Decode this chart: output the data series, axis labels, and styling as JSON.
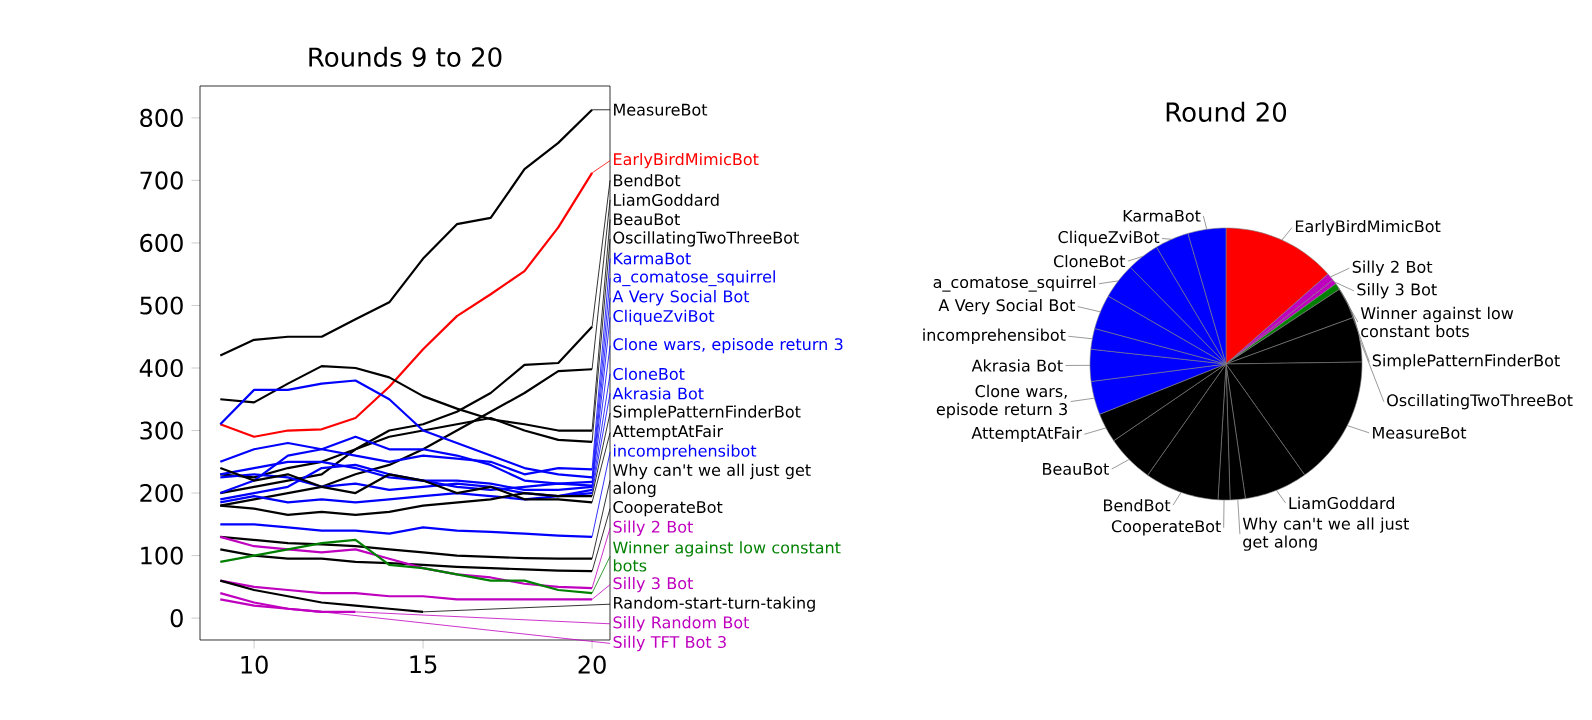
{
  "chart_data": [
    {
      "type": "line",
      "title": "Rounds 9 to 20",
      "legend": "right",
      "x": [
        9,
        10,
        11,
        12,
        13,
        14,
        15,
        16,
        17,
        18,
        19,
        20
      ],
      "xlim": [
        8.4,
        20.53
      ],
      "ylim": [
        -35,
        851
      ],
      "xticks": [
        10,
        15,
        20
      ],
      "yticks": [
        0,
        100,
        200,
        300,
        400,
        500,
        600,
        700,
        800
      ],
      "series": [
        {
          "name": "MeasureBot",
          "color": "#000000",
          "values": [
            420,
            445,
            450,
            450,
            478,
            505,
            575,
            630,
            640,
            718,
            760,
            813
          ]
        },
        {
          "name": "EarlyBirdMimicBot",
          "color": "#ff0000",
          "values": [
            310,
            290,
            300,
            302,
            320,
            370,
            430,
            483,
            518,
            555,
            625,
            712
          ]
        },
        {
          "name": "BendBot",
          "color": "#000000",
          "values": [
            230,
            225,
            240,
            250,
            270,
            300,
            310,
            330,
            360,
            405,
            408,
            466
          ]
        },
        {
          "name": "LiamGoddard",
          "color": "#000000",
          "values": [
            180,
            190,
            200,
            210,
            230,
            245,
            270,
            300,
            330,
            360,
            395,
            398
          ]
        },
        {
          "name": "BeauBot",
          "color": "#000000",
          "values": [
            350,
            345,
            375,
            403,
            400,
            385,
            355,
            335,
            318,
            310,
            300,
            300
          ]
        },
        {
          "name": "OscillatingTwoThreeBot",
          "color": "#000000",
          "values": [
            200,
            210,
            220,
            230,
            270,
            290,
            300,
            310,
            320,
            300,
            285,
            282
          ]
        },
        {
          "name": "KarmaBot",
          "color": "#0000ff",
          "values": [
            250,
            270,
            280,
            270,
            260,
            250,
            260,
            255,
            250,
            230,
            240,
            238
          ]
        },
        {
          "name": "a_comatose_squirrel",
          "color": "#0000ff",
          "values": [
            310,
            365,
            365,
            375,
            380,
            350,
            300,
            280,
            260,
            240,
            230,
            225
          ]
        },
        {
          "name": "A Very Social Bot",
          "color": "#0000ff",
          "values": [
            200,
            220,
            260,
            270,
            290,
            270,
            270,
            260,
            245,
            220,
            215,
            218
          ]
        },
        {
          "name": "CliqueZviBot",
          "color": "#0000ff",
          "values": [
            230,
            240,
            250,
            250,
            240,
            225,
            220,
            210,
            205,
            210,
            215,
            212
          ]
        },
        {
          "name": "Clone wars, episode return 3",
          "color": "#0000ff",
          "values": [
            190,
            200,
            210,
            240,
            245,
            230,
            220,
            220,
            215,
            205,
            205,
            210
          ]
        },
        {
          "name": "CloneBot",
          "color": "#0000ff",
          "values": [
            225,
            230,
            225,
            210,
            215,
            205,
            210,
            215,
            210,
            200,
            195,
            205
          ]
        },
        {
          "name": "Akrasia Bot",
          "color": "#0000ff",
          "values": [
            185,
            195,
            185,
            190,
            185,
            190,
            195,
            200,
            195,
            190,
            195,
            200
          ]
        },
        {
          "name": "SimplePatternFinderBot",
          "color": "#000000",
          "values": [
            180,
            175,
            165,
            170,
            165,
            170,
            180,
            185,
            190,
            200,
            195,
            195
          ]
        },
        {
          "name": "AttemptAtFair",
          "color": "#000000",
          "values": [
            240,
            220,
            230,
            210,
            200,
            230,
            220,
            200,
            210,
            190,
            190,
            185
          ]
        },
        {
          "name": "incomprehensibot",
          "color": "#0000ff",
          "values": [
            150,
            150,
            145,
            140,
            140,
            135,
            145,
            140,
            138,
            135,
            132,
            130
          ]
        },
        {
          "name": "Why can't we all just get along",
          "color": "#000000",
          "values": [
            130,
            125,
            120,
            118,
            115,
            110,
            105,
            100,
            98,
            96,
            95,
            95
          ]
        },
        {
          "name": "CooperateBot",
          "color": "#000000",
          "values": [
            110,
            100,
            95,
            95,
            90,
            88,
            85,
            82,
            80,
            78,
            76,
            75
          ]
        },
        {
          "name": "Silly 2 Bot",
          "color": "#bf00bf",
          "values": [
            130,
            115,
            110,
            105,
            110,
            95,
            80,
            70,
            65,
            55,
            50,
            48
          ]
        },
        {
          "name": "Winner against low constant bots",
          "color": "#008000",
          "values": [
            90,
            100,
            110,
            120,
            125,
            85,
            80,
            70,
            60,
            60,
            45,
            40
          ]
        },
        {
          "name": "Silly 3 Bot",
          "color": "#bf00bf",
          "values": [
            60,
            50,
            45,
            40,
            40,
            35,
            35,
            30,
            30,
            30,
            30,
            30
          ]
        },
        {
          "name": "Random-start-turn-taking",
          "color": "#000000",
          "values": [
            60,
            45,
            35,
            25,
            20,
            15,
            10,
            null,
            null,
            null,
            null,
            null
          ]
        },
        {
          "name": "Silly Random Bot",
          "color": "#bf00bf",
          "values": [
            30,
            20,
            15,
            10,
            10,
            null,
            null,
            null,
            null,
            null,
            null,
            null
          ]
        },
        {
          "name": "Silly TFT Bot 3",
          "color": "#bf00bf",
          "values": [
            40,
            25,
            15,
            10,
            null,
            null,
            null,
            null,
            null,
            null,
            null,
            null
          ]
        }
      ]
    },
    {
      "type": "pie",
      "title": "Round 20",
      "categories": [
        "EarlyBirdMimicBot",
        "Silly 2 Bot",
        "Silly 3 Bot",
        "Winner against low constant bots",
        "SimplePatternFinderBot",
        "OscillatingTwoThreeBot",
        "MeasureBot",
        "LiamGoddard",
        "Why can't we all just get along",
        "CooperateBot",
        "BendBot",
        "BeauBot",
        "AttemptAtFair",
        "Clone wars, episode return 3",
        "Akrasia Bot",
        "incomprehensibot",
        "A Very Social Bot",
        "a_comatose_squirrel",
        "CloneBot",
        "CliqueZviBot",
        "KarmaBot"
      ],
      "values": [
        13.49,
        0.91,
        0.57,
        0.76,
        3.7,
        5.34,
        15.41,
        7.54,
        1.8,
        1.42,
        8.83,
        5.69,
        3.51,
        3.98,
        3.79,
        2.46,
        4.13,
        4.26,
        3.88,
        4.02,
        4.51
      ],
      "colors": [
        "#ff0000",
        "#bf00bf",
        "#bf00bf",
        "#008000",
        "#000000",
        "#000000",
        "#000000",
        "#000000",
        "#000000",
        "#000000",
        "#000000",
        "#000000",
        "#000000",
        "#0000ff",
        "#0000ff",
        "#0000ff",
        "#0000ff",
        "#0000ff",
        "#0000ff",
        "#0000ff",
        "#0000ff"
      ]
    }
  ]
}
